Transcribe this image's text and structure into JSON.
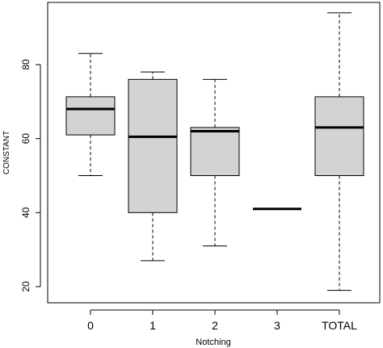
{
  "chart_data": {
    "type": "boxplot",
    "xlabel": "Notching",
    "ylabel": "CONSTANT",
    "categories": [
      "0",
      "1",
      "2",
      "3",
      "TOTAL"
    ],
    "yticks": [
      20,
      40,
      60,
      80
    ],
    "ylim": [
      15,
      98
    ],
    "grid": false,
    "box_color": "#d3d3d3",
    "line_color": "#000000",
    "boxes": [
      {
        "category": "0",
        "whisker_low": 50,
        "q1": 61,
        "median": 68,
        "q3": 71.3,
        "whisker_high": 83
      },
      {
        "category": "1",
        "whisker_low": 27,
        "q1": 40,
        "median": 60.5,
        "q3": 76,
        "whisker_high": 78
      },
      {
        "category": "2",
        "whisker_low": 31,
        "q1": 50,
        "median": 62,
        "q3": 63,
        "whisker_high": 76
      },
      {
        "category": "3",
        "whisker_low": 41,
        "q1": 41,
        "median": 41,
        "q3": 41,
        "whisker_high": 41
      },
      {
        "category": "TOTAL",
        "whisker_low": 19,
        "q1": 50,
        "median": 63,
        "q3": 71.3,
        "whisker_high": 94
      }
    ]
  }
}
